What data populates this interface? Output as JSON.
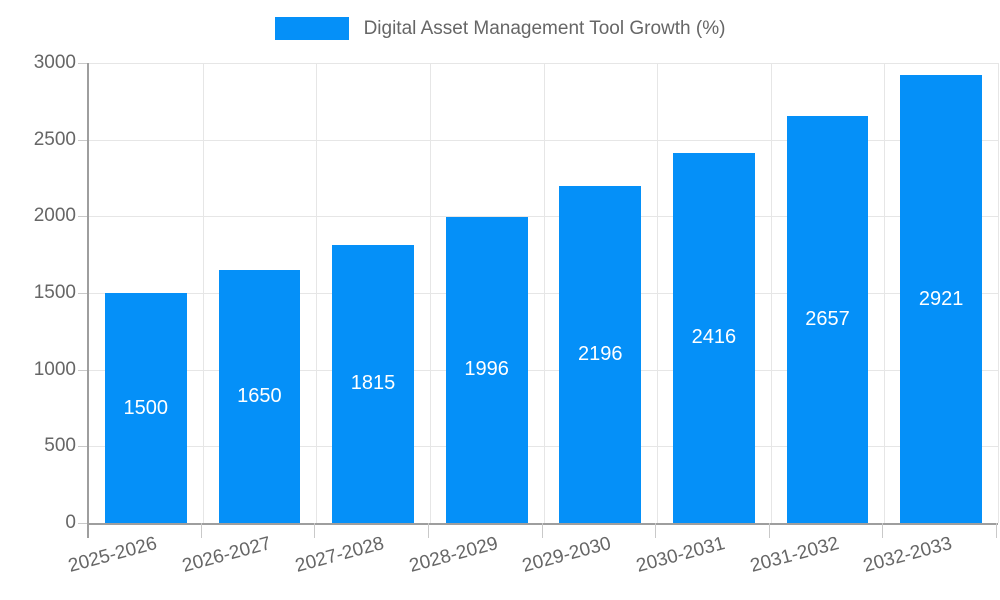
{
  "chart_data": {
    "type": "bar",
    "title": "Digital Asset Management Tool Growth (%)",
    "categories": [
      "2025-2026",
      "2026-2027",
      "2027-2028",
      "2028-2029",
      "2029-2030",
      "2030-2031",
      "2031-2032",
      "2032-2033"
    ],
    "values": [
      1500,
      1650,
      1815,
      1996,
      2196,
      2416,
      2657,
      2921
    ],
    "xlabel": "",
    "ylabel": "",
    "ylim": [
      0,
      3000
    ],
    "yticks": [
      0,
      500,
      1000,
      1500,
      2000,
      2500,
      3000
    ],
    "grid": true,
    "legend_position": "top-center",
    "legend_entries": [
      "Digital Asset Management Tool Growth (%)"
    ],
    "colors": {
      "bar": "#0590f8",
      "value_label": "#ffffff",
      "axis": "#9e9e9e",
      "grid": "#e6e6e6",
      "tick": "#c9c9c9",
      "text": "#666666"
    }
  }
}
